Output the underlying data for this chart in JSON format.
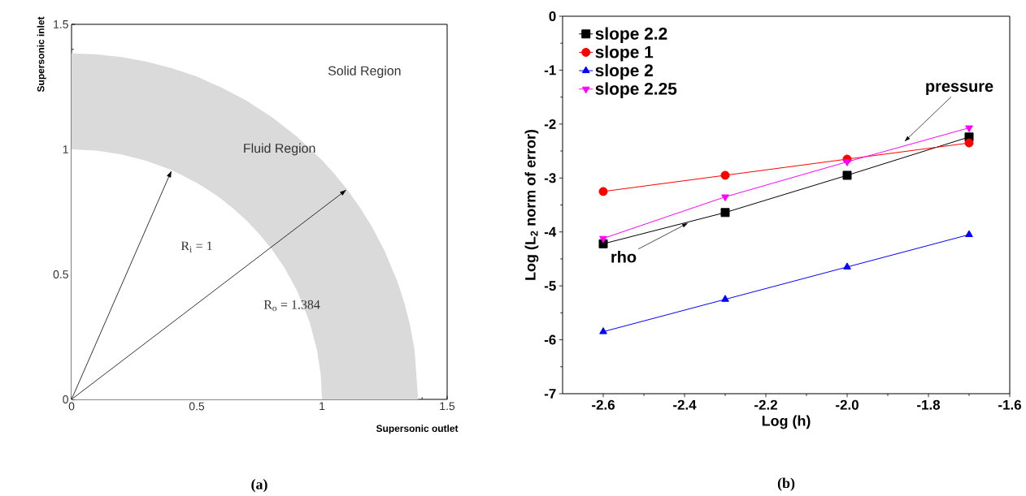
{
  "chart_data": [
    {
      "type": "area",
      "title": "(a)",
      "xlabel": "Supersonic outlet",
      "ylabel": "Supersonic inlet",
      "series": [
        {
          "color": "#dadada",
          "x": [
            0,
            0.1,
            0.2,
            0.3,
            0.4,
            0.5,
            0.6,
            0.7,
            0.8,
            0.9,
            1.0,
            1.05,
            1.1,
            1.15,
            1.2,
            1.25,
            1.3,
            1.33,
            1.35,
            1.37,
            1.384
          ],
          "values": [
            1.384,
            1.38,
            1.369,
            1.351,
            1.325,
            1.291,
            1.247,
            1.194,
            1.129,
            1.051,
            0.957,
            0.902,
            0.84,
            0.77,
            0.69,
            0.594,
            0.475,
            0.383,
            0.305,
            0.196,
            0
          ]
        },
        {
          "color": "#ffffff",
          "x": [
            0,
            0.1,
            0.2,
            0.3,
            0.4,
            0.5,
            0.55,
            0.6,
            0.65,
            0.7,
            0.75,
            0.8,
            0.85,
            0.9,
            0.95,
            0.98,
            0.995,
            1
          ],
          "values": [
            1,
            0.995,
            0.98,
            0.954,
            0.917,
            0.866,
            0.835,
            0.8,
            0.76,
            0.714,
            0.661,
            0.6,
            0.527,
            0.436,
            0.312,
            0.199,
            0.1,
            0
          ]
        }
      ],
      "xlim": [
        0,
        1.5
      ],
      "ylim": [
        0,
        1.5
      ],
      "xticks": [
        0,
        0.5,
        1,
        1.5
      ],
      "yticks": [
        0,
        0.5,
        1,
        1.5
      ],
      "annotations": [
        "Solid Region",
        "Fluid Region",
        "R$_{i}$ = 1",
        "R$_{o}$ = 1.384"
      ]
    },
    {
      "type": "line",
      "title": "(b)",
      "xlabel": "Log (h)",
      "ylabel": "Log (L$_{2}$ norm of error)",
      "x": [
        -2.6,
        -2.3,
        -2.0,
        -1.7
      ],
      "series": [
        {
          "name": "slope 2.2",
          "color": "#000000",
          "marker": "square",
          "values": [
            -4.22,
            -3.64,
            -2.95,
            -2.24
          ]
        },
        {
          "name": "slope 1",
          "color": "#ff0000",
          "marker": "circle",
          "values": [
            -3.25,
            -2.95,
            -2.65,
            -2.35
          ]
        },
        {
          "name": "slope 2",
          "color": "#0000ff",
          "marker": "triangle",
          "values": [
            -5.85,
            -5.25,
            -4.65,
            -4.05
          ]
        },
        {
          "name": "slope 2.25",
          "color": "#ff00ff",
          "marker": "triangle down",
          "values": [
            -4.12,
            -3.35,
            -2.7,
            -2.07
          ]
        }
      ],
      "xlim": [
        -2.7,
        -1.6
      ],
      "ylim": [
        -7,
        0
      ],
      "xticks": [
        -2.6,
        -2.4,
        -2.2,
        {
          "value": -2.0,
          "label": "-2.0"
        },
        -1.8,
        -1.6
      ],
      "yticks": [
        -7,
        -6,
        -5,
        -4,
        -3,
        -2,
        -1,
        0
      ],
      "legend": "top left",
      "line_style": "solid",
      "annotations": [
        {
          "text": "pressure",
          "x": -1.86,
          "y": -2.33
        },
        {
          "text": "rho",
          "x": -2.39,
          "y": -3.83
        }
      ]
    }
  ]
}
